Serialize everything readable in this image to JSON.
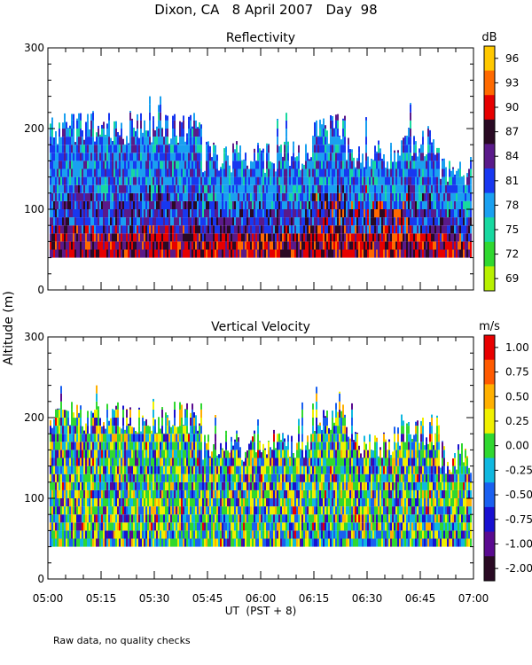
{
  "page_title": "Dixon, CA   8 April 2007   Day  98",
  "shared_ylabel": "Altitude (m)",
  "footnote": "Raw data, no quality checks",
  "chart_data": [
    {
      "type": "heatmap",
      "title": "Reflectivity",
      "colorbar_unit": "dB",
      "colorbar_ticks": [
        "96",
        "93",
        "90",
        "87",
        "84",
        "81",
        "78",
        "75",
        "72",
        "69"
      ],
      "colorbar_colors": [
        "#ffc800",
        "#ff6a00",
        "#e60000",
        "#2a0a24",
        "#5a1a8a",
        "#1838f0",
        "#1aa0f0",
        "#18d8a0",
        "#30d830",
        "#b8f000"
      ],
      "ylim": [
        0,
        300
      ],
      "yticks": [
        "300",
        "200",
        "100",
        "0"
      ],
      "xlim": [
        "05:00",
        "07:00"
      ],
      "xticks": [],
      "xlabel": ""
    },
    {
      "type": "heatmap",
      "title": "Vertical Velocity",
      "colorbar_unit": "m/s",
      "colorbar_ticks": [
        "1.00",
        "0.75",
        "0.50",
        "0.25",
        "0.00",
        "-0.25",
        "-0.50",
        "-0.75",
        "-1.00",
        "-2.00"
      ],
      "colorbar_colors": [
        "#e80000",
        "#ff5a00",
        "#ffb000",
        "#f0f000",
        "#30d830",
        "#10b8e0",
        "#1a60f0",
        "#1810d0",
        "#5a0a90",
        "#2a0a24"
      ],
      "ylim": [
        0,
        300
      ],
      "yticks": [
        "300",
        "200",
        "100",
        "0"
      ],
      "xlim": [
        "05:00",
        "07:00"
      ],
      "xticks": [
        "05:00",
        "05:15",
        "05:30",
        "05:45",
        "06:00",
        "06:15",
        "06:30",
        "06:45",
        "07:00"
      ],
      "xlabel": "UT  (PST + 8)"
    }
  ]
}
